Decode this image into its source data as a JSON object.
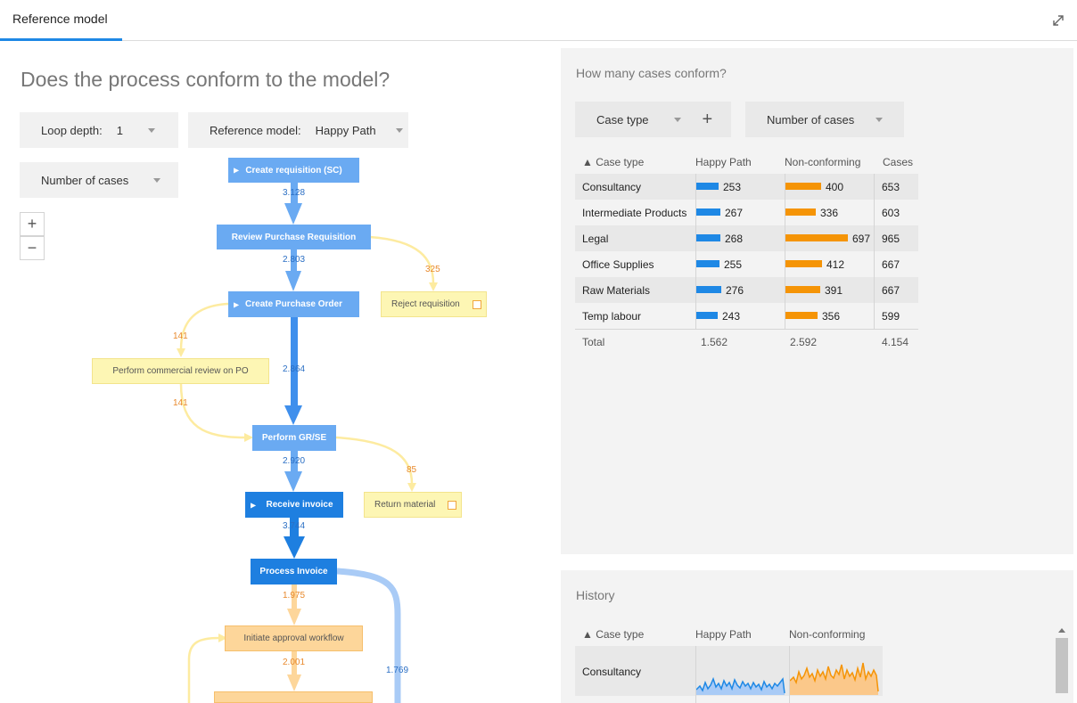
{
  "tab": {
    "label": "Reference model"
  },
  "main": {
    "question": "Does the process conform to the model?",
    "loop_depth": {
      "label": "Loop depth:",
      "value": "1"
    },
    "reference_model": {
      "label": "Reference model:",
      "value": "Happy Path"
    },
    "metric": {
      "value": "Number of cases"
    },
    "zoom_in": "+",
    "zoom_out": "−"
  },
  "flow": {
    "nodes": [
      {
        "id": "create-requisition",
        "label": "Create requisition (SC)",
        "type": "blue",
        "start": true
      },
      {
        "id": "review-pr",
        "label": "Review Purchase Requisition",
        "type": "blue"
      },
      {
        "id": "create-po",
        "label": "Create Purchase Order",
        "type": "blue",
        "start": true
      },
      {
        "id": "reject",
        "label": "Reject requisition",
        "type": "yellow"
      },
      {
        "id": "commercial-review",
        "label": "Perform commercial review on PO",
        "type": "yellow"
      },
      {
        "id": "grse",
        "label": "Perform GR/SE",
        "type": "blue"
      },
      {
        "id": "receive-invoice",
        "label": "Receive invoice",
        "type": "dblue",
        "start": true
      },
      {
        "id": "return-material",
        "label": "Return material",
        "type": "yellow"
      },
      {
        "id": "process-invoice",
        "label": "Process Invoice",
        "type": "dblue"
      },
      {
        "id": "initiate-approval",
        "label": "Initiate approval workflow",
        "type": "orange"
      }
    ],
    "edges": [
      "3.128",
      "2.803",
      "325",
      "141",
      "2.864",
      "141",
      "2.920",
      "85",
      "3.744",
      "1.975",
      "2.001",
      "1.769"
    ]
  },
  "conform": {
    "title": "How many cases conform?",
    "group_by": "Case type",
    "add_icon": "+",
    "metric": "Number of cases",
    "columns": [
      "▲ Case type",
      "Happy Path",
      "Non-conforming",
      "Cases"
    ],
    "rows": [
      {
        "case_type": "Consultancy",
        "happy": "253",
        "non": "400",
        "cases": "653",
        "happy_v": 253,
        "non_v": 400
      },
      {
        "case_type": "Intermediate Products",
        "happy": "267",
        "non": "336",
        "cases": "603",
        "happy_v": 267,
        "non_v": 336
      },
      {
        "case_type": "Legal",
        "happy": "268",
        "non": "697",
        "cases": "965",
        "happy_v": 268,
        "non_v": 697
      },
      {
        "case_type": "Office Supplies",
        "happy": "255",
        "non": "412",
        "cases": "667",
        "happy_v": 255,
        "non_v": 412
      },
      {
        "case_type": "Raw Materials",
        "happy": "276",
        "non": "391",
        "cases": "667",
        "happy_v": 276,
        "non_v": 391
      },
      {
        "case_type": "Temp labour",
        "happy": "243",
        "non": "356",
        "cases": "599",
        "happy_v": 243,
        "non_v": 356
      }
    ],
    "total": {
      "label": "Total",
      "happy": "1.562",
      "non": "2.592",
      "cases": "4.154"
    }
  },
  "history": {
    "title": "History",
    "columns": [
      "▲ Case type",
      "Happy Path",
      "Non-conforming"
    ],
    "rows": [
      {
        "case_type": "Consultancy"
      }
    ],
    "colors": {
      "happy": "#1e88e5",
      "non": "#f59406"
    }
  }
}
